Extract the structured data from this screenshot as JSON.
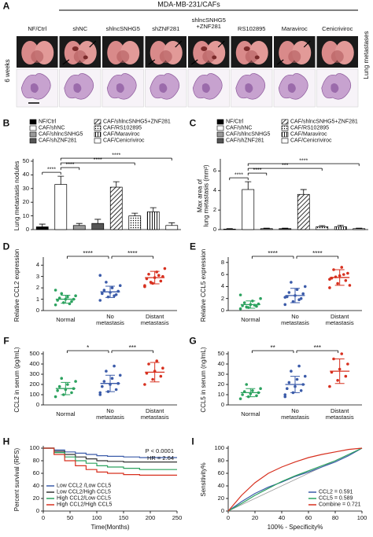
{
  "panel_a": {
    "panel_label": "A",
    "header": "MDA-MB-231/CAFs",
    "columns": [
      "NF/Ctrl",
      "shNC",
      "shlncSNHG5",
      "shZNF281",
      "shlncSNHG5\n+ZNF281",
      "RS102895",
      "Maraviroc",
      "Cenicriviroc"
    ],
    "row_label": "6 weeks",
    "side_label": "Lung metastases"
  },
  "chart_data": [
    {
      "type": "bar",
      "panel_label": "B",
      "y_label": "Lung metastasis nodules",
      "categories": [
        "NF/Ctrl",
        "CAF/shNC",
        "CAF/shlncSNHG5",
        "CAF/shZNF281",
        "CAF/shlncSNHG5+ZNF281",
        "CAF/RS102895",
        "CAF/Maraviroc",
        "CAF/Cenicriviroc"
      ],
      "values": [
        2,
        33,
        3,
        4.5,
        31,
        10,
        13,
        3
      ],
      "errors": [
        2,
        6,
        1.5,
        3,
        4,
        2,
        3,
        2
      ],
      "colors": [
        "#000000",
        "#ffffff",
        "#9a9a9a",
        "#555555",
        "hatch",
        "dots",
        "vlines",
        "#ffffff"
      ],
      "ylim": [
        0,
        50
      ],
      "yticks": [
        0,
        10,
        20,
        30,
        40,
        50
      ],
      "significance": [
        "****",
        "****",
        "****",
        "****"
      ]
    },
    {
      "type": "bar",
      "panel_label": "C",
      "y_label": "Max area of\nlung metastasis (mm²)",
      "categories": [
        "NF/Ctrl",
        "CAF/shNC",
        "CAF/shlncSNHG5",
        "CAF/shZNF281",
        "CAF/shlncSNHG5+ZNF281",
        "CAF/RS102895",
        "CAF/Maraviroc",
        "CAF/Cenicriviroc"
      ],
      "values": [
        0.05,
        4.1,
        0.1,
        0.1,
        3.6,
        0.3,
        0.3,
        0.1
      ],
      "errors": [
        0.05,
        0.8,
        0.05,
        0.05,
        0.5,
        0.1,
        0.15,
        0.05
      ],
      "colors": [
        "#000000",
        "#ffffff",
        "#9a9a9a",
        "#555555",
        "hatch",
        "dots",
        "vlines",
        "#ffffff"
      ],
      "ylim": [
        0,
        7
      ],
      "yticks": [
        0,
        2,
        4,
        6
      ],
      "significance": [
        "****",
        "****",
        "***",
        "****"
      ]
    },
    {
      "type": "scatter",
      "panel_label": "D",
      "y_label": "Relative CCL2 expression",
      "ylim": [
        0,
        4.5
      ],
      "yticks": [
        0,
        1,
        2,
        3,
        4
      ],
      "series": [
        {
          "name": "Normal",
          "color": "#2ca25f",
          "values": [
            0.5,
            0.7,
            0.8,
            0.9,
            1.0,
            1.0,
            1.1,
            1.2,
            1.3,
            1.5,
            0.6,
            1.8
          ],
          "mean": 1.0,
          "sd": 0.35
        },
        {
          "name": "No\nmetastasis",
          "color": "#3b5ba9",
          "values": [
            0.9,
            1.2,
            1.4,
            1.5,
            1.6,
            1.7,
            1.8,
            2.0,
            2.2,
            2.5,
            1.3,
            3.1
          ],
          "mean": 1.65,
          "sd": 0.5
        },
        {
          "name": "Distant\nmetastasis",
          "color": "#d7301f",
          "values": [
            2.1,
            2.4,
            2.6,
            2.8,
            2.9,
            3.0,
            3.2,
            3.4,
            3.7,
            2.5,
            3.1,
            2.2
          ],
          "mean": 2.9,
          "sd": 0.55
        }
      ],
      "significance": [
        "****",
        "****"
      ]
    },
    {
      "type": "scatter",
      "panel_label": "E",
      "y_label": "Relative CCL5 expression",
      "ylim": [
        0,
        8.5
      ],
      "yticks": [
        0,
        2,
        4,
        6,
        8
      ],
      "series": [
        {
          "name": "Normal",
          "color": "#2ca25f",
          "values": [
            0.3,
            0.5,
            0.7,
            0.8,
            1.0,
            1.1,
            1.3,
            1.6,
            2.0,
            0.6,
            0.9,
            2.6
          ],
          "mean": 1.0,
          "sd": 0.6
        },
        {
          "name": "No\nmetastasis",
          "color": "#3b5ba9",
          "values": [
            1.0,
            1.5,
            2.0,
            2.3,
            2.5,
            2.8,
            3.0,
            3.5,
            4.0,
            4.7,
            1.8,
            2.2
          ],
          "mean": 2.5,
          "sd": 1.2
        },
        {
          "name": "Distant\nmetastasis",
          "color": "#d7301f",
          "values": [
            3.8,
            4.5,
            5.0,
            5.4,
            5.8,
            6.2,
            6.8,
            7.2,
            4.2,
            5.6,
            6.0,
            5.2
          ],
          "mean": 5.5,
          "sd": 1.3
        }
      ],
      "significance": [
        "****",
        "****"
      ]
    },
    {
      "type": "scatter",
      "panel_label": "F",
      "y_label": "CCL2 in serum (pg/mL)",
      "ylim": [
        0,
        500
      ],
      "yticks": [
        0,
        100,
        200,
        300,
        400,
        500
      ],
      "series": [
        {
          "name": "Normal",
          "color": "#2ca25f",
          "values": [
            80,
            100,
            120,
            140,
            150,
            160,
            180,
            200,
            230,
            260
          ],
          "mean": 160,
          "sd": 60
        },
        {
          "name": "No\nmetastasis",
          "color": "#3b5ba9",
          "values": [
            100,
            130,
            150,
            180,
            200,
            210,
            230,
            260,
            290,
            330,
            380,
            120
          ],
          "mean": 210,
          "sd": 80
        },
        {
          "name": "Distant\nmetastasis",
          "color": "#d7301f",
          "values": [
            200,
            250,
            280,
            310,
            330,
            360,
            400,
            430
          ],
          "mean": 320,
          "sd": 95
        }
      ],
      "significance": [
        "*",
        "***"
      ]
    },
    {
      "type": "scatter",
      "panel_label": "G",
      "y_label": "CCL5 in serum (ng/mL)",
      "ylim": [
        0,
        50
      ],
      "yticks": [
        0,
        10,
        20,
        30,
        40,
        50
      ],
      "series": [
        {
          "name": "Normal",
          "color": "#2ca25f",
          "values": [
            6,
            8,
            9,
            10,
            11,
            12,
            13,
            14,
            16,
            20
          ],
          "mean": 12,
          "sd": 4
        },
        {
          "name": "No\nmetastasis",
          "color": "#3b5ba9",
          "values": [
            8,
            12,
            14,
            16,
            18,
            20,
            22,
            25,
            28,
            33,
            38,
            10
          ],
          "mean": 20,
          "sd": 8
        },
        {
          "name": "Distant\nmetastasis",
          "color": "#d7301f",
          "values": [
            18,
            24,
            28,
            32,
            35,
            40,
            45,
            50
          ],
          "mean": 33,
          "sd": 12
        }
      ],
      "significance": [
        "**",
        "***"
      ]
    },
    {
      "type": "line",
      "step": true,
      "panel_label": "H",
      "y_label": "Percent survival (RFS)",
      "x_label": "Time(Months)",
      "x": [
        0,
        20,
        40,
        60,
        80,
        100,
        120,
        150,
        180,
        220,
        250
      ],
      "series": [
        {
          "name": "Low CCL2 /Low CCL5",
          "color": "#3b5ba9",
          "values": [
            100,
            97,
            94,
            92,
            90,
            88,
            87,
            86,
            85,
            85,
            85
          ]
        },
        {
          "name": "Low CCL2/High CCL5",
          "color": "#333333",
          "values": [
            100,
            95,
            90,
            86,
            83,
            80,
            79,
            78,
            78,
            78,
            78
          ]
        },
        {
          "name": "High CCL2/Low CCL5",
          "color": "#2ca25f",
          "values": [
            100,
            93,
            86,
            80,
            76,
            72,
            70,
            68,
            66,
            66,
            66
          ]
        },
        {
          "name": "High CCL2/High CCL5",
          "color": "#d7301f",
          "values": [
            100,
            90,
            80,
            72,
            66,
            62,
            60,
            58,
            57,
            57,
            57
          ]
        }
      ],
      "xlim": [
        0,
        250
      ],
      "xticks": [
        0,
        50,
        100,
        150,
        200,
        250
      ],
      "ylim": [
        0,
        100
      ],
      "yticks": [
        0,
        20,
        40,
        60,
        80,
        100
      ],
      "annotations": [
        "P < 0.0001",
        "HR = 2.64"
      ],
      "legend": "lower left"
    },
    {
      "type": "line",
      "step": false,
      "diagonal": true,
      "panel_label": "I",
      "y_label": "Sensitivity%",
      "x_label": "100% - Specificity%",
      "x": [
        0,
        10,
        20,
        30,
        40,
        50,
        60,
        70,
        80,
        90,
        100
      ],
      "series": [
        {
          "name": "CCL2 = 0.591",
          "color": "#3b5ba9",
          "values": [
            0,
            15,
            28,
            38,
            46,
            55,
            62,
            70,
            78,
            88,
            100
          ]
        },
        {
          "name": "CCL5 = 0.589",
          "color": "#2ca25f",
          "values": [
            0,
            12,
            25,
            36,
            47,
            56,
            64,
            72,
            80,
            90,
            100
          ]
        },
        {
          "name": "Combine = 0.721",
          "color": "#d7301f",
          "values": [
            0,
            25,
            45,
            60,
            70,
            78,
            85,
            90,
            94,
            98,
            100
          ]
        }
      ],
      "xlim": [
        0,
        100
      ],
      "xticks": [
        0,
        20,
        40,
        60,
        80,
        100
      ],
      "ylim": [
        0,
        100
      ],
      "yticks": [
        0,
        20,
        40,
        60,
        80,
        100
      ],
      "annotations": [],
      "legend": "lower right"
    }
  ]
}
